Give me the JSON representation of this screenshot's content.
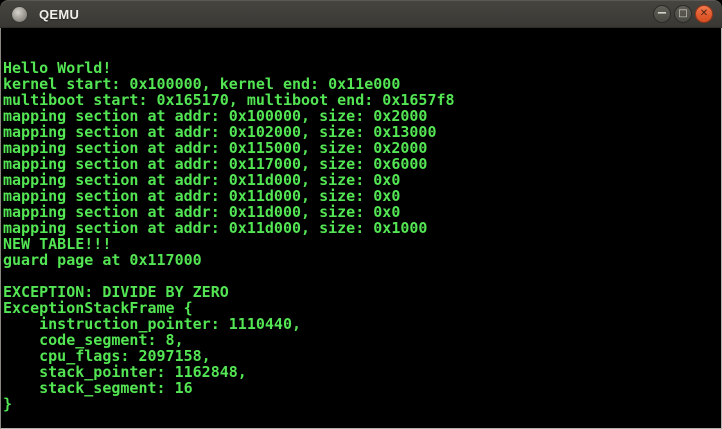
{
  "window": {
    "title": "QEMU",
    "icon": "qemu-window-icon",
    "controls": [
      {
        "name": "minimize",
        "glyph": "−"
      },
      {
        "name": "maximize",
        "glyph": "□"
      },
      {
        "name": "close",
        "glyph": "✕"
      }
    ]
  },
  "colors": {
    "console_text": "#53e553",
    "console_bg": "#000000",
    "titlebar": "#403e39",
    "close_button": "#e05a2c"
  },
  "console": {
    "lines": [
      "",
      "",
      "Hello World!",
      "kernel start: 0x100000, kernel end: 0x11e000",
      "multiboot start: 0x165170, multiboot end: 0x1657f8",
      "mapping section at addr: 0x100000, size: 0x2000",
      "mapping section at addr: 0x102000, size: 0x13000",
      "mapping section at addr: 0x115000, size: 0x2000",
      "mapping section at addr: 0x117000, size: 0x6000",
      "mapping section at addr: 0x11d000, size: 0x0",
      "mapping section at addr: 0x11d000, size: 0x0",
      "mapping section at addr: 0x11d000, size: 0x0",
      "mapping section at addr: 0x11d000, size: 0x1000",
      "NEW TABLE!!!",
      "guard page at 0x117000",
      "",
      "EXCEPTION: DIVIDE BY ZERO",
      "ExceptionStackFrame {",
      "    instruction_pointer: 1110440,",
      "    code_segment: 8,",
      "    cpu_flags: 2097158,",
      "    stack_pointer: 1162848,",
      "    stack_segment: 16",
      "}",
      ""
    ]
  }
}
